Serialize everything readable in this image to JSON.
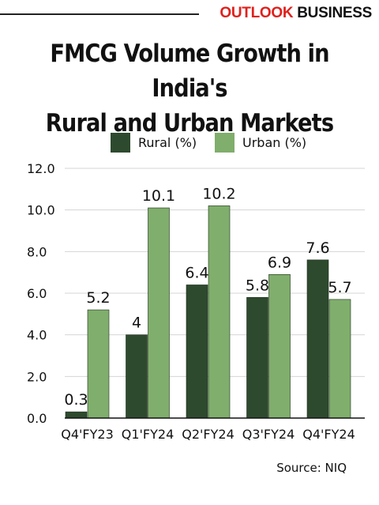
{
  "brand": {
    "name_part1": "OUTLOOK",
    "name_part2": "BUSINESS"
  },
  "title_line1": "FMCG Volume Growth in India's",
  "title_line2": "Rural and Urban Markets",
  "source": "Source: NIQ",
  "colors": {
    "rural": "#2e4a2e",
    "urban": "#80ae6c",
    "grid": "#d4d4d4",
    "brand_red": "#e0201c"
  },
  "chart_data": {
    "type": "bar",
    "categories": [
      "Q4'FY23",
      "Q1'FY24",
      "Q2'FY24",
      "Q3'FY24",
      "Q4'FY24"
    ],
    "series": [
      {
        "name": "Rural (%)",
        "values": [
          0.3,
          4,
          6.4,
          5.8,
          7.6
        ],
        "labels": [
          "0.3",
          "4",
          "6.4",
          "5.8",
          "7.6"
        ]
      },
      {
        "name": "Urban (%)",
        "values": [
          5.2,
          10.1,
          10.2,
          6.9,
          5.7
        ],
        "labels": [
          "5.2",
          "10.1",
          "10.2",
          "6.9",
          "5.7"
        ]
      }
    ],
    "ylim": [
      0,
      12
    ],
    "yticks": [
      "0.0",
      "2.0",
      "4.0",
      "6.0",
      "8.0",
      "10.0",
      "12.0"
    ],
    "grid": true,
    "legend_position": "top"
  }
}
